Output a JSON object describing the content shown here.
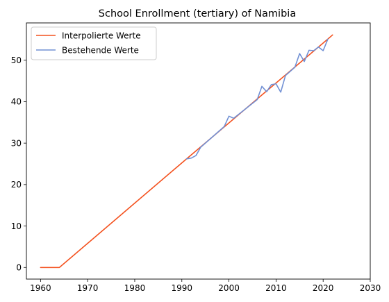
{
  "chart_data": {
    "type": "line",
    "title": "School Enrollment (tertiary) of Namibia",
    "xlabel": "",
    "ylabel": "",
    "xlim": [
      1957,
      2030
    ],
    "ylim": [
      -2.8,
      59
    ],
    "x_ticks": [
      1960,
      1970,
      1980,
      1990,
      2000,
      2010,
      2020,
      2030
    ],
    "y_ticks": [
      0,
      10,
      20,
      30,
      40,
      50
    ],
    "grid": false,
    "legend_position": "top-left",
    "series": [
      {
        "name": "Interpolierte Werte",
        "color": "#f4511e",
        "x": [
          1960,
          1964,
          1991,
          2021,
          2022
        ],
        "y": [
          0,
          0,
          26.2,
          55.1,
          56.1
        ]
      },
      {
        "name": "Bestehende Werte",
        "color": "#7190d4",
        "x": [
          1991,
          1992,
          1993,
          1994,
          1999,
          2000,
          2001,
          2006,
          2007,
          2008,
          2009,
          2010,
          2011,
          2012,
          2014,
          2015,
          2016,
          2017,
          2018,
          2019,
          2020,
          2021
        ],
        "y": [
          26.2,
          26.4,
          27.0,
          29.0,
          34.0,
          36.5,
          36.0,
          40.5,
          43.7,
          42.4,
          44.1,
          44.3,
          42.3,
          46.3,
          48.3,
          51.6,
          49.7,
          52.4,
          52.3,
          53.2,
          52.3,
          55.1
        ]
      }
    ]
  }
}
